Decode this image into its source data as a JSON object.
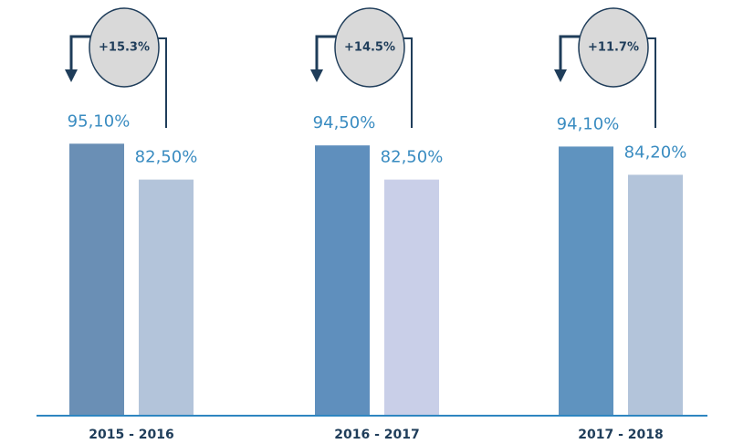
{
  "chart_data": {
    "type": "bar",
    "categories": [
      "2015 - 2016",
      "2016 - 2017",
      "2017 - 2018"
    ],
    "series": [
      {
        "color": "#5f8fbd",
        "colors": [
          "#6a8fb5",
          "#5f8fbd",
          "#5f93bf"
        ],
        "values": [
          95.1,
          94.5,
          94.1
        ],
        "value_labels": [
          "95,10%",
          "94,50%",
          "94,10%"
        ]
      },
      {
        "color": "#b3c4da",
        "colors": [
          "#b3c4da",
          "#c9cfe8",
          "#b3c4da"
        ],
        "values": [
          82.5,
          82.5,
          84.2
        ],
        "value_labels": [
          "82,50%",
          "82,50%",
          "84,20%"
        ]
      }
    ],
    "annotations": [
      "+15.3%",
      "+14.5%",
      "+11.7%"
    ],
    "ylim": [
      0,
      100
    ]
  }
}
